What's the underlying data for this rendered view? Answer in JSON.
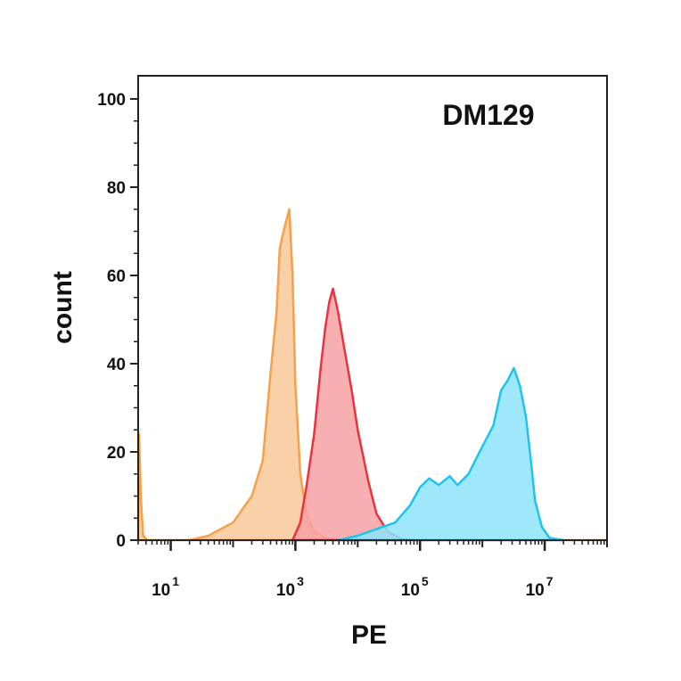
{
  "chart_data": {
    "type": "area",
    "title": "DM129",
    "xlabel": "PE",
    "ylabel": "count",
    "x_scale": "log",
    "xlim": [
      3,
      100000000
    ],
    "ylim": [
      0,
      100
    ],
    "x_ticks": [
      {
        "base": "10",
        "exp": "1",
        "value": 10
      },
      {
        "base": "10",
        "exp": "3",
        "value": 1000
      },
      {
        "base": "10",
        "exp": "5",
        "value": 100000
      },
      {
        "base": "10",
        "exp": "7",
        "value": 10000000
      }
    ],
    "y_ticks": [
      {
        "label": "0",
        "value": 0
      },
      {
        "label": "20",
        "value": 20
      },
      {
        "label": "40",
        "value": 40
      },
      {
        "label": "60",
        "value": 60
      },
      {
        "label": "80",
        "value": 80
      },
      {
        "label": "100",
        "value": 100
      }
    ],
    "grid": false,
    "legend": "none",
    "series": [
      {
        "color": "#f5a04a",
        "fill": "#f9c89a",
        "points": [
          [
            3,
            0
          ],
          [
            3.1,
            24
          ],
          [
            3.3,
            10
          ],
          [
            3.6,
            1
          ],
          [
            4.2,
            0
          ],
          [
            20,
            0
          ],
          [
            40,
            1
          ],
          [
            100,
            4
          ],
          [
            200,
            10
          ],
          [
            300,
            18
          ],
          [
            400,
            38
          ],
          [
            500,
            52
          ],
          [
            560,
            66
          ],
          [
            620,
            69
          ],
          [
            700,
            72
          ],
          [
            800,
            75
          ],
          [
            900,
            60
          ],
          [
            1000,
            35
          ],
          [
            1200,
            15
          ],
          [
            1500,
            6
          ],
          [
            2000,
            2
          ],
          [
            3000,
            0.5
          ],
          [
            5000,
            0
          ],
          [
            100000000,
            0
          ]
        ]
      },
      {
        "color": "#e8343f",
        "fill": "#f7a1a5",
        "points": [
          [
            900,
            0
          ],
          [
            1200,
            4
          ],
          [
            1500,
            12
          ],
          [
            2000,
            24
          ],
          [
            2500,
            38
          ],
          [
            3000,
            48
          ],
          [
            3500,
            54
          ],
          [
            4000,
            57
          ],
          [
            4800,
            52
          ],
          [
            6000,
            44
          ],
          [
            8000,
            34
          ],
          [
            10000,
            25
          ],
          [
            15000,
            13
          ],
          [
            20000,
            6
          ],
          [
            30000,
            2
          ],
          [
            50000,
            0.3
          ],
          [
            70000,
            0
          ]
        ]
      },
      {
        "color": "#1ec3f0",
        "fill": "#8ee4fb",
        "points": [
          [
            5000,
            0
          ],
          [
            10000,
            1
          ],
          [
            20000,
            2.5
          ],
          [
            40000,
            4
          ],
          [
            70000,
            8
          ],
          [
            100000,
            12
          ],
          [
            140000,
            14
          ],
          [
            200000,
            12.5
          ],
          [
            300000,
            14.5
          ],
          [
            400000,
            12.5
          ],
          [
            600000,
            15
          ],
          [
            900000,
            20
          ],
          [
            1500000,
            26
          ],
          [
            2000000,
            34
          ],
          [
            2500000,
            36
          ],
          [
            3200000,
            39
          ],
          [
            4000000,
            35
          ],
          [
            5000000,
            28
          ],
          [
            6000000,
            18
          ],
          [
            7000000,
            9
          ],
          [
            9000000,
            3
          ],
          [
            12000000,
            0.5
          ],
          [
            20000000,
            0
          ]
        ]
      }
    ]
  }
}
